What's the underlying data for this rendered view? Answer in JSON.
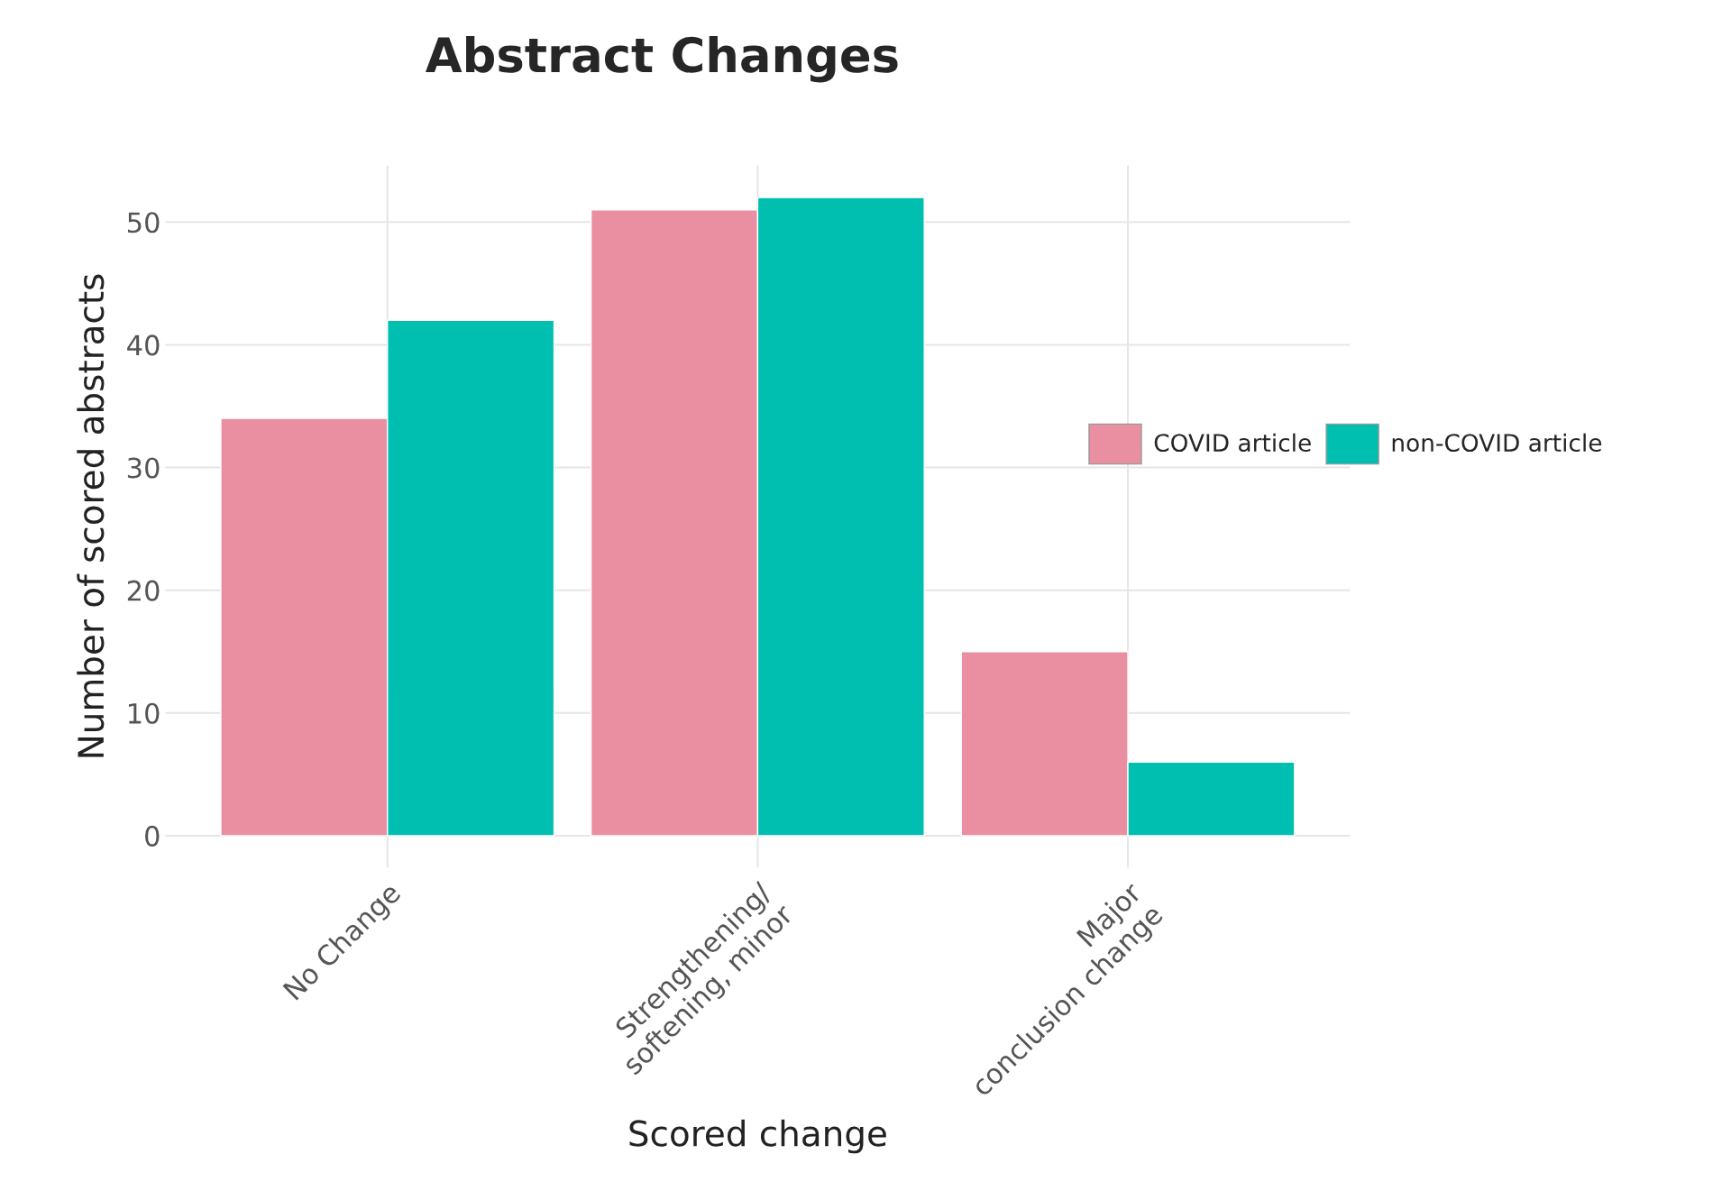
{
  "chart_data": {
    "type": "bar",
    "title": "Abstract Changes",
    "xlabel": "Scored change",
    "ylabel": "Number of scored abstracts",
    "categories": [
      "No Change",
      "Strengthening/\nsoftening, minor",
      "Major\nconclusion change"
    ],
    "series": [
      {
        "name": "COVID article",
        "color": "#ea8fa1",
        "values": [
          34,
          51,
          15
        ]
      },
      {
        "name": "non-COVID article",
        "color": "#00bfb0",
        "values": [
          42,
          52,
          6
        ]
      }
    ],
    "ylim": [
      -2.6,
      54.6
    ],
    "yticks": [
      0,
      10,
      20,
      30,
      40,
      50
    ],
    "grid": true,
    "legend": "right"
  }
}
